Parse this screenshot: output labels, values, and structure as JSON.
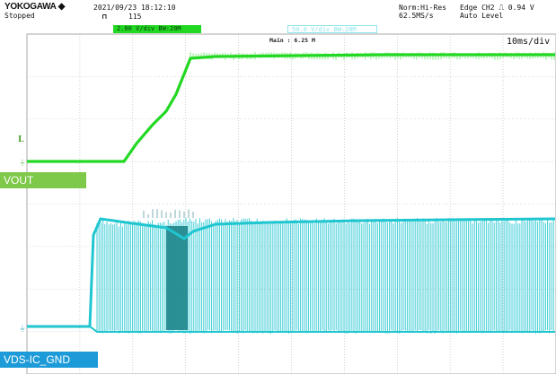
{
  "header": {
    "brand": "YOKOGAWA ◆",
    "state": "Stopped",
    "datetime": "2021/09/23 18:12:10",
    "acq_count": "115",
    "acq_mode": "Norm:Hi-Res",
    "sample_rate": "62.5MS/s",
    "trigger": "Edge CH2 ⎍ 0.94 V",
    "trigger_mode": "Auto Level"
  },
  "channels": {
    "ch2_scale": "2.00 V/div  BW:20M",
    "ch3_scale": "50.0 V/div  BW:20M",
    "ch2_color": "#22d822",
    "ch3_color": "#1fc6d0"
  },
  "display": {
    "main_label": "Main : 6.25 M",
    "timebase": "10ms/div",
    "marker_char": "L"
  },
  "traces": {
    "vout_label": "VOUT",
    "vds_label": "VDS-IC_GND",
    "vout_tag_color": "#7ec84a",
    "vds_tag_color": "#1d9bd8"
  }
}
